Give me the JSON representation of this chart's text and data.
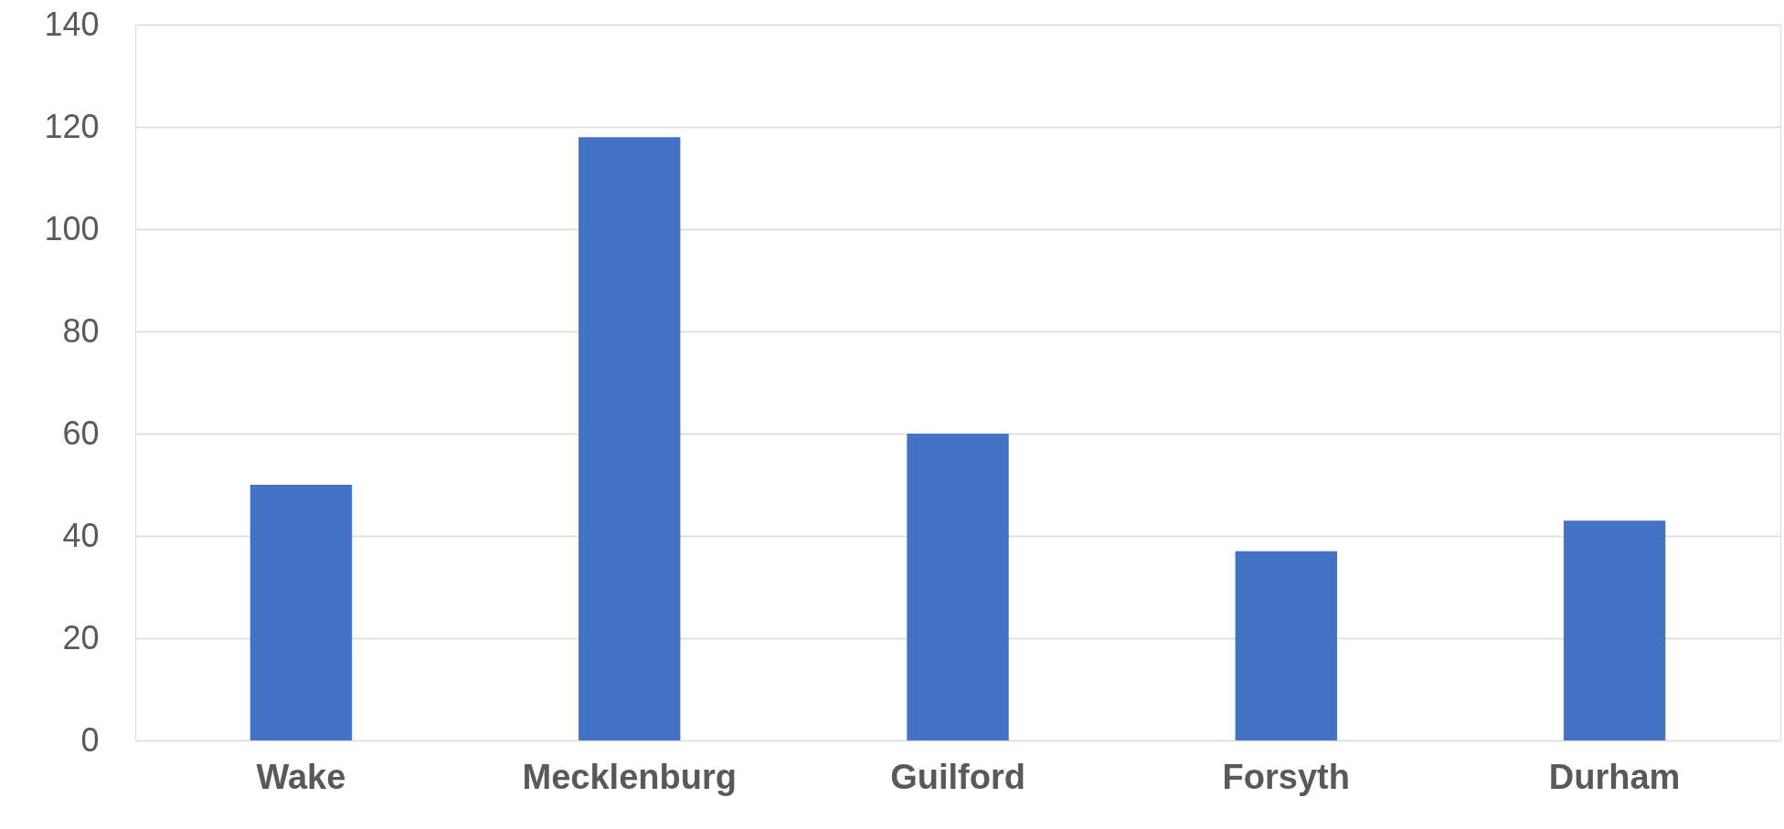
{
  "chart_data": {
    "type": "bar",
    "categories": [
      "Wake",
      "Mecklenburg",
      "Guilford",
      "Forsyth",
      "Durham"
    ],
    "values": [
      50,
      118,
      60,
      37,
      43
    ],
    "color": "#4472c4",
    "ylim": [
      0,
      140
    ],
    "yticks": [
      0,
      20,
      40,
      60,
      80,
      100,
      120,
      140
    ],
    "grid": "y"
  }
}
